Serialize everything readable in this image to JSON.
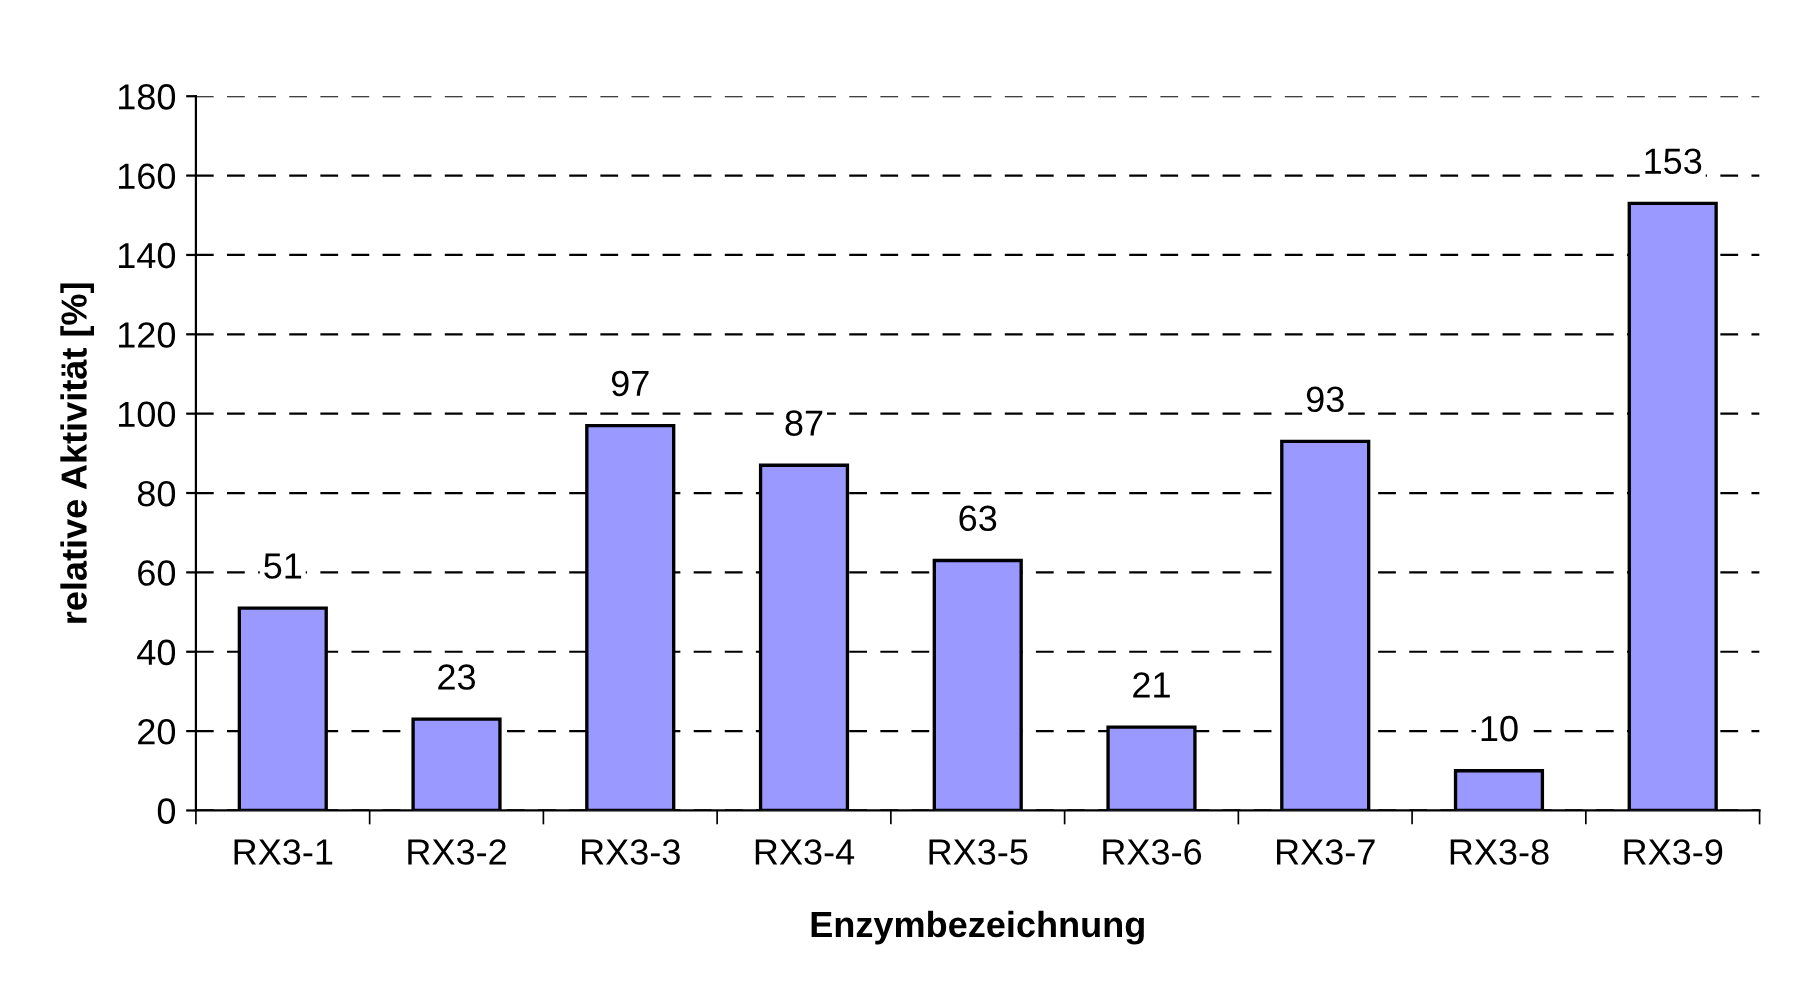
{
  "chart_data": {
    "type": "bar",
    "xlabel": "Enzymbezeichnung",
    "ylabel": "relative Aktivität [%]",
    "categories": [
      "RX3-1",
      "RX3-2",
      "RX3-3",
      "RX3-4",
      "RX3-5",
      "RX3-6",
      "RX3-7",
      "RX3-8",
      "RX3-9"
    ],
    "values": [
      51,
      23,
      97,
      87,
      63,
      21,
      93,
      10,
      153
    ],
    "color": "#9999ff",
    "ylim": [
      0,
      180
    ],
    "yticks": [
      0,
      20,
      40,
      60,
      80,
      100,
      120,
      140,
      160,
      180
    ],
    "grid": "y",
    "data_labels": true,
    "legend": false
  }
}
